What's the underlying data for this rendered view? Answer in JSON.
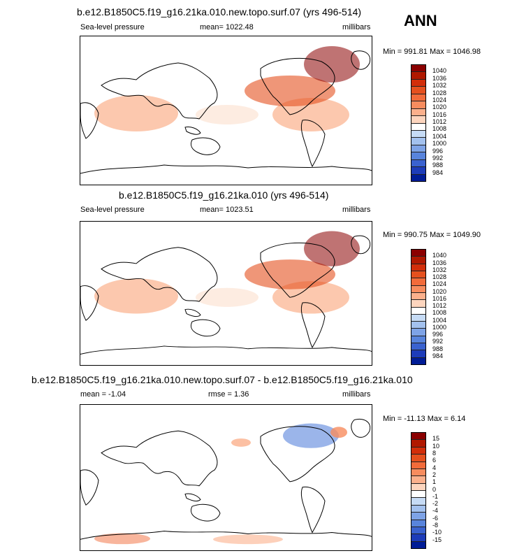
{
  "header": {
    "season": "ANN"
  },
  "panels": [
    {
      "title": "b.e12.B1850C5.f19_g16.21ka.010.new.topo.surf.07 (yrs 496-514)",
      "left_label": "Sea-level pressure",
      "center_label": "mean= 1022.48",
      "right_label": "millibars",
      "stats": "Min = 991.81 Max = 1046.98"
    },
    {
      "title": "b.e12.B1850C5.f19_g16.21ka.010 (yrs 496-514)",
      "left_label": "Sea-level pressure",
      "center_label": "mean= 1023.51",
      "right_label": "millibars",
      "stats": "Min = 990.75 Max = 1049.90"
    },
    {
      "title": "b.e12.B1850C5.f19_g16.21ka.010.new.topo.surf.07 - b.e12.B1850C5.f19_g16.21ka.010",
      "left_label": "mean =  -1.04",
      "center_label": "rmse =   1.36",
      "right_label": "millibars",
      "stats": "Min = -11.13 Max =   6.14"
    }
  ],
  "colorbar_abs": {
    "levels": [
      "1040",
      "1036",
      "1032",
      "1028",
      "1024",
      "1020",
      "1016",
      "1012",
      "1008",
      "1004",
      "1000",
      "996",
      "992",
      "988",
      "984"
    ],
    "colors": [
      "#8b0000",
      "#b01800",
      "#d22e0a",
      "#e5501e",
      "#f26b3a",
      "#f78c5e",
      "#fbb08c",
      "#fdd5be",
      "#ffffff",
      "#c6dbf5",
      "#a3c1ee",
      "#7ea3e6",
      "#5884dc",
      "#3a62cf",
      "#1d3cb9",
      "#001c96"
    ]
  },
  "colorbar_diff": {
    "levels": [
      "15",
      "10",
      "8",
      "6",
      "4",
      "2",
      "1",
      "0",
      "-1",
      "-2",
      "-4",
      "-6",
      "-8",
      "-10",
      "-15"
    ],
    "colors": [
      "#8b0000",
      "#b01800",
      "#d22e0a",
      "#e5501e",
      "#f26b3a",
      "#f78c5e",
      "#fbb08c",
      "#fdd5be",
      "#ffffff",
      "#c6dbf5",
      "#a3c1ee",
      "#7ea3e6",
      "#5884dc",
      "#3a62cf",
      "#1d3cb9",
      "#001c96"
    ]
  },
  "chart_data": [
    {
      "type": "heatmap",
      "title": "b.e12.B1850C5.f19_g16.21ka.010.new.topo.surf.07 (yrs 496-514)",
      "variable": "Sea-level pressure",
      "units": "millibars",
      "mean": 1022.48,
      "min": 991.81,
      "max": 1046.98,
      "contour_levels": [
        984,
        988,
        992,
        996,
        1000,
        1004,
        1008,
        1012,
        1016,
        1020,
        1024,
        1028,
        1032,
        1036,
        1040
      ]
    },
    {
      "type": "heatmap",
      "title": "b.e12.B1850C5.f19_g16.21ka.010 (yrs 496-514)",
      "variable": "Sea-level pressure",
      "units": "millibars",
      "mean": 1023.51,
      "min": 990.75,
      "max": 1049.9,
      "contour_levels": [
        984,
        988,
        992,
        996,
        1000,
        1004,
        1008,
        1012,
        1016,
        1020,
        1024,
        1028,
        1032,
        1036,
        1040
      ]
    },
    {
      "type": "heatmap",
      "title": "b.e12.B1850C5.f19_g16.21ka.010.new.topo.surf.07 - b.e12.B1850C5.f19_g16.21ka.010",
      "units": "millibars",
      "mean": -1.04,
      "rmse": 1.36,
      "min": -11.13,
      "max": 6.14,
      "contour_levels": [
        -15,
        -10,
        -8,
        -6,
        -4,
        -2,
        -1,
        0,
        1,
        2,
        4,
        6,
        8,
        10,
        15
      ]
    }
  ]
}
